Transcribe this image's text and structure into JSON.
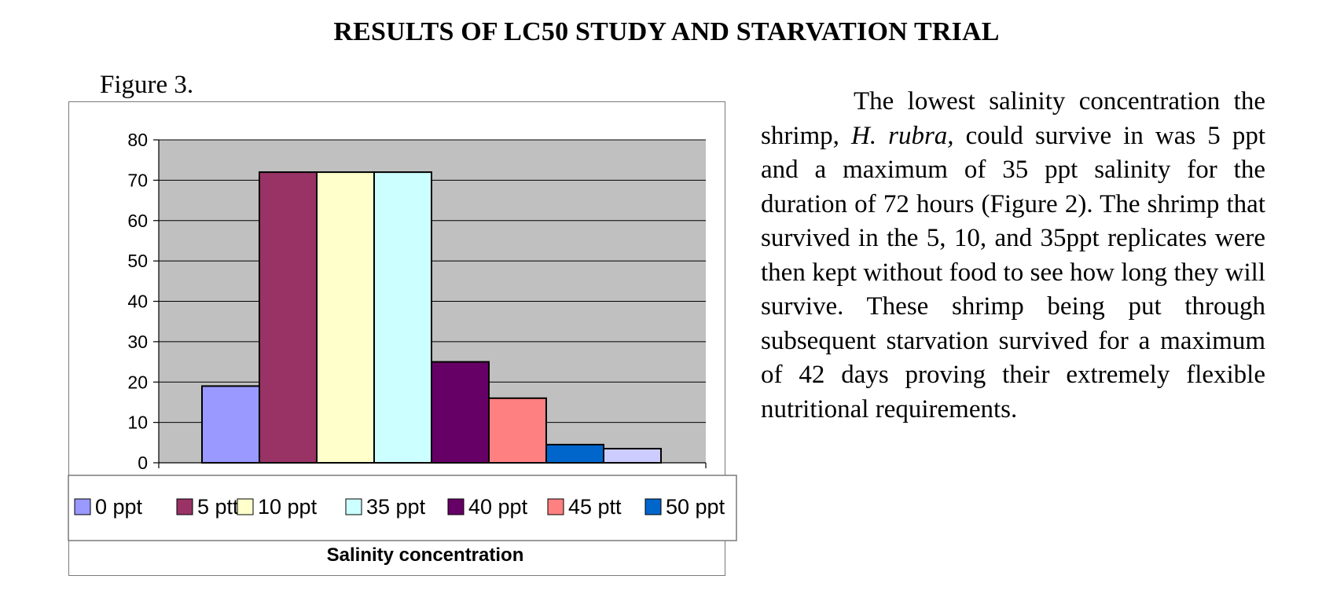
{
  "document": {
    "title": "RESULTS OF LC50 STUDY AND STARVATION TRIAL",
    "figure_label": "Figure 3.",
    "paragraph": {
      "part1": "The lowest salinity concentration the shrimp, ",
      "species": "H. rubra,",
      "part2": " could survive in was 5 ppt and a maximum of 35 ppt salinity for the duration of 72 hours (Figure 2). The shrimp that survived in the 5, 10, and 35ppt replicates were then kept without food to see how long they will survive.  These shrimp being put through subsequent starvation survived for a maximum of 42 days proving their extremely flexible nutritional requirements."
    }
  },
  "chart_data": {
    "type": "bar",
    "xlabel": "Salinity concentration",
    "ylabel": "",
    "ylim": [
      0,
      80
    ],
    "yticks": [
      0,
      10,
      20,
      30,
      40,
      50,
      60,
      70,
      80
    ],
    "grid": true,
    "plot_background": "#c0c0c0",
    "legend_position": "bottom",
    "series": [
      {
        "name": "0 ppt",
        "value": 19,
        "color": "#9999ff"
      },
      {
        "name": "5 ptt",
        "value": 72,
        "color": "#993366"
      },
      {
        "name": "10 ppt",
        "value": 72,
        "color": "#ffffcc"
      },
      {
        "name": "35 ppt",
        "value": 72,
        "color": "#ccffff"
      },
      {
        "name": "40 ppt",
        "value": 25,
        "color": "#660066"
      },
      {
        "name": "45 ptt",
        "value": 16,
        "color": "#ff8080"
      },
      {
        "name": "50 ppt",
        "value": 4.5,
        "color": "#0066cc"
      },
      {
        "name": "",
        "value": 3.5,
        "color": "#ccccff"
      }
    ]
  }
}
